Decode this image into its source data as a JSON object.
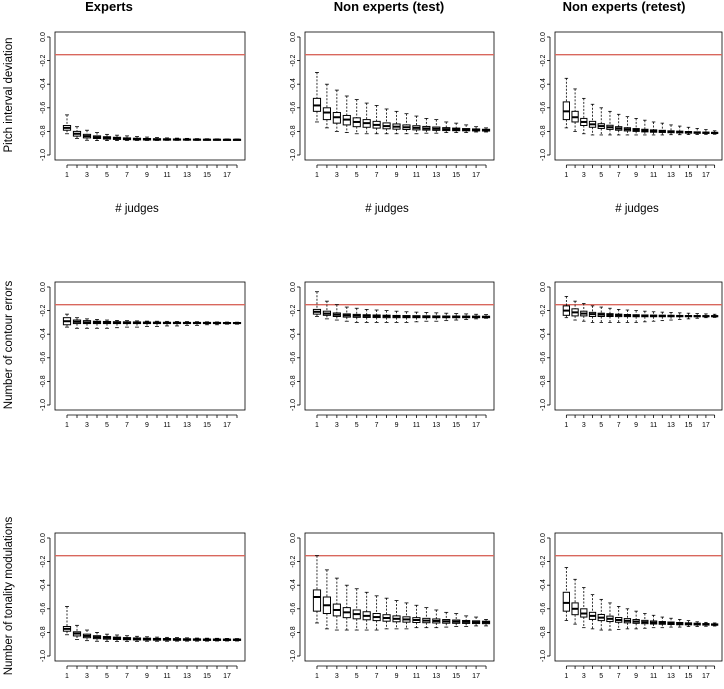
{
  "column_titles": [
    "Experts",
    "Non experts (test)",
    "Non experts (retest)"
  ],
  "row_labels": [
    "Pitch interval deviation",
    "Number of contour errors",
    "Number of tonality modulations"
  ],
  "xlabel": "# judges",
  "colors": {
    "reference_line": "#d9675d",
    "box": "#000000"
  },
  "chart_data": [
    {
      "type": "box",
      "row": 0,
      "col": 0,
      "title": "Experts",
      "ylabel": "Pitch interval deviation",
      "xlabel": "# judges",
      "ylim": [
        -1.0,
        0.0
      ],
      "yticks": [
        "0.0",
        "-0.2",
        "-0.4",
        "-0.6",
        "-0.8",
        "-1.0"
      ],
      "xticks": [
        "1",
        "3",
        "5",
        "7",
        "9",
        "11",
        "13",
        "15",
        "17"
      ],
      "reference_line": -0.15,
      "n_judges": 18,
      "medians": [
        -0.77,
        -0.82,
        -0.84,
        -0.85,
        -0.855,
        -0.86,
        -0.862,
        -0.864,
        -0.866,
        -0.868,
        -0.868,
        -0.869,
        -0.869,
        -0.87,
        -0.87,
        -0.87,
        -0.87,
        -0.87
      ],
      "q1": [
        -0.79,
        -0.84,
        -0.855,
        -0.86,
        -0.865,
        -0.868,
        -0.87,
        -0.872,
        -0.873,
        -0.874,
        -0.874,
        -0.874,
        -0.874,
        -0.874,
        -0.874,
        -0.874,
        -0.874,
        -0.874
      ],
      "q3": [
        -0.75,
        -0.8,
        -0.825,
        -0.838,
        -0.845,
        -0.85,
        -0.855,
        -0.858,
        -0.86,
        -0.862,
        -0.863,
        -0.864,
        -0.865,
        -0.866,
        -0.867,
        -0.867,
        -0.868,
        -0.868
      ],
      "whisker_low": [
        -0.82,
        -0.86,
        -0.875,
        -0.878,
        -0.878,
        -0.878,
        -0.877,
        -0.877,
        -0.877,
        -0.877,
        -0.876,
        -0.876,
        -0.876,
        -0.876,
        -0.875,
        -0.875,
        -0.875,
        -0.874
      ],
      "whisker_high": [
        -0.66,
        -0.76,
        -0.79,
        -0.81,
        -0.825,
        -0.832,
        -0.838,
        -0.844,
        -0.848,
        -0.852,
        -0.855,
        -0.857,
        -0.859,
        -0.861,
        -0.862,
        -0.863,
        -0.864,
        -0.865
      ]
    },
    {
      "type": "box",
      "row": 0,
      "col": 1,
      "title": "Non experts (test)",
      "ylabel": "Pitch interval deviation",
      "xlabel": "# judges",
      "ylim": [
        -1.0,
        0.0
      ],
      "yticks": [
        "0.0",
        "-0.2",
        "-0.4",
        "-0.6",
        "-0.8",
        "-1.0"
      ],
      "xticks": [
        "1",
        "3",
        "5",
        "7",
        "9",
        "11",
        "13",
        "15",
        "17"
      ],
      "reference_line": -0.15,
      "n_judges": 18,
      "medians": [
        -0.58,
        -0.64,
        -0.68,
        -0.7,
        -0.72,
        -0.73,
        -0.745,
        -0.755,
        -0.76,
        -0.765,
        -0.77,
        -0.775,
        -0.778,
        -0.781,
        -0.784,
        -0.786,
        -0.788,
        -0.79
      ],
      "q1": [
        -0.63,
        -0.7,
        -0.73,
        -0.745,
        -0.76,
        -0.765,
        -0.772,
        -0.778,
        -0.781,
        -0.784,
        -0.787,
        -0.789,
        -0.791,
        -0.793,
        -0.794,
        -0.795,
        -0.796,
        -0.797
      ],
      "q3": [
        -0.52,
        -0.6,
        -0.64,
        -0.665,
        -0.685,
        -0.7,
        -0.715,
        -0.728,
        -0.737,
        -0.745,
        -0.752,
        -0.758,
        -0.763,
        -0.768,
        -0.772,
        -0.776,
        -0.779,
        -0.782
      ],
      "whisker_low": [
        -0.72,
        -0.77,
        -0.8,
        -0.81,
        -0.82,
        -0.82,
        -0.82,
        -0.82,
        -0.82,
        -0.82,
        -0.82,
        -0.815,
        -0.815,
        -0.81,
        -0.81,
        -0.81,
        -0.805,
        -0.805
      ],
      "whisker_high": [
        -0.3,
        -0.4,
        -0.45,
        -0.5,
        -0.53,
        -0.56,
        -0.58,
        -0.61,
        -0.63,
        -0.65,
        -0.67,
        -0.69,
        -0.7,
        -0.72,
        -0.73,
        -0.745,
        -0.76,
        -0.77
      ]
    },
    {
      "type": "box",
      "row": 0,
      "col": 2,
      "title": "Non experts (retest)",
      "ylabel": "Pitch interval deviation",
      "xlabel": "# judges",
      "ylim": [
        -1.0,
        0.0
      ],
      "yticks": [
        "0.0",
        "-0.2",
        "-0.4",
        "-0.6",
        "-0.8",
        "-1.0"
      ],
      "xticks": [
        "1",
        "3",
        "5",
        "7",
        "9",
        "11",
        "13",
        "15",
        "17"
      ],
      "reference_line": -0.15,
      "n_judges": 18,
      "medians": [
        -0.63,
        -0.68,
        -0.72,
        -0.74,
        -0.755,
        -0.765,
        -0.775,
        -0.782,
        -0.788,
        -0.793,
        -0.797,
        -0.8,
        -0.803,
        -0.806,
        -0.808,
        -0.81,
        -0.812,
        -0.813
      ],
      "q1": [
        -0.7,
        -0.72,
        -0.75,
        -0.765,
        -0.775,
        -0.783,
        -0.79,
        -0.796,
        -0.8,
        -0.804,
        -0.807,
        -0.809,
        -0.811,
        -0.813,
        -0.815,
        -0.816,
        -0.817,
        -0.818
      ],
      "q3": [
        -0.55,
        -0.63,
        -0.69,
        -0.715,
        -0.735,
        -0.748,
        -0.76,
        -0.769,
        -0.776,
        -0.782,
        -0.787,
        -0.791,
        -0.795,
        -0.798,
        -0.801,
        -0.804,
        -0.806,
        -0.808
      ],
      "whisker_low": [
        -0.77,
        -0.8,
        -0.82,
        -0.83,
        -0.83,
        -0.83,
        -0.83,
        -0.83,
        -0.83,
        -0.83,
        -0.83,
        -0.83,
        -0.828,
        -0.828,
        -0.827,
        -0.826,
        -0.825,
        -0.824
      ],
      "whisker_high": [
        -0.35,
        -0.44,
        -0.52,
        -0.57,
        -0.6,
        -0.63,
        -0.655,
        -0.675,
        -0.69,
        -0.705,
        -0.72,
        -0.73,
        -0.745,
        -0.755,
        -0.765,
        -0.775,
        -0.785,
        -0.795
      ]
    },
    {
      "type": "box",
      "row": 1,
      "col": 0,
      "title": "Experts",
      "ylabel": "Number of contour errors",
      "xlabel": "",
      "ylim": [
        -1.0,
        0.0
      ],
      "yticks": [
        "0.0",
        "-0.2",
        "-0.4",
        "-0.6",
        "-0.8",
        "-1.0"
      ],
      "xticks": [
        "1",
        "3",
        "5",
        "7",
        "9",
        "11",
        "13",
        "15",
        "17"
      ],
      "reference_line": -0.15,
      "n_judges": 18,
      "medians": [
        -0.29,
        -0.295,
        -0.3,
        -0.3,
        -0.302,
        -0.303,
        -0.303,
        -0.304,
        -0.304,
        -0.304,
        -0.305,
        -0.305,
        -0.305,
        -0.305,
        -0.305,
        -0.305,
        -0.305,
        -0.305
      ],
      "q1": [
        -0.32,
        -0.31,
        -0.31,
        -0.31,
        -0.31,
        -0.31,
        -0.31,
        -0.31,
        -0.31,
        -0.31,
        -0.31,
        -0.31,
        -0.31,
        -0.31,
        -0.31,
        -0.31,
        -0.31,
        -0.31
      ],
      "q3": [
        -0.26,
        -0.28,
        -0.285,
        -0.29,
        -0.292,
        -0.294,
        -0.295,
        -0.296,
        -0.297,
        -0.298,
        -0.299,
        -0.299,
        -0.3,
        -0.3,
        -0.3,
        -0.3,
        -0.301,
        -0.301
      ],
      "whisker_low": [
        -0.34,
        -0.35,
        -0.35,
        -0.35,
        -0.35,
        -0.345,
        -0.34,
        -0.34,
        -0.335,
        -0.335,
        -0.33,
        -0.33,
        -0.325,
        -0.325,
        -0.32,
        -0.32,
        -0.315,
        -0.315
      ],
      "whisker_high": [
        -0.23,
        -0.26,
        -0.27,
        -0.275,
        -0.28,
        -0.283,
        -0.285,
        -0.287,
        -0.289,
        -0.29,
        -0.291,
        -0.292,
        -0.293,
        -0.294,
        -0.295,
        -0.296,
        -0.297,
        -0.298
      ]
    },
    {
      "type": "box",
      "row": 1,
      "col": 1,
      "title": "Non experts (test)",
      "ylabel": "Number of contour errors",
      "xlabel": "",
      "ylim": [
        -1.0,
        0.0
      ],
      "yticks": [
        "0.0",
        "-0.2",
        "-0.4",
        "-0.6",
        "-0.8",
        "-1.0"
      ],
      "xticks": [
        "1",
        "3",
        "5",
        "7",
        "9",
        "11",
        "13",
        "15",
        "17"
      ],
      "reference_line": -0.15,
      "n_judges": 18,
      "medians": [
        -0.21,
        -0.225,
        -0.235,
        -0.24,
        -0.243,
        -0.245,
        -0.247,
        -0.248,
        -0.249,
        -0.25,
        -0.25,
        -0.251,
        -0.251,
        -0.252,
        -0.252,
        -0.252,
        -0.253,
        -0.253
      ],
      "q1": [
        -0.23,
        -0.24,
        -0.25,
        -0.255,
        -0.257,
        -0.258,
        -0.259,
        -0.26,
        -0.26,
        -0.26,
        -0.26,
        -0.26,
        -0.26,
        -0.26,
        -0.26,
        -0.26,
        -0.26,
        -0.26
      ],
      "q3": [
        -0.19,
        -0.205,
        -0.22,
        -0.228,
        -0.232,
        -0.235,
        -0.237,
        -0.239,
        -0.241,
        -0.242,
        -0.243,
        -0.244,
        -0.245,
        -0.246,
        -0.246,
        -0.247,
        -0.247,
        -0.248
      ],
      "whisker_low": [
        -0.25,
        -0.27,
        -0.28,
        -0.29,
        -0.3,
        -0.3,
        -0.3,
        -0.3,
        -0.3,
        -0.3,
        -0.295,
        -0.29,
        -0.29,
        -0.285,
        -0.28,
        -0.275,
        -0.27,
        -0.265
      ],
      "whisker_high": [
        -0.04,
        -0.12,
        -0.15,
        -0.17,
        -0.18,
        -0.19,
        -0.195,
        -0.2,
        -0.205,
        -0.21,
        -0.213,
        -0.216,
        -0.219,
        -0.222,
        -0.225,
        -0.228,
        -0.231,
        -0.234
      ]
    },
    {
      "type": "box",
      "row": 1,
      "col": 2,
      "title": "Non experts (retest)",
      "ylabel": "Number of contour errors",
      "xlabel": "",
      "ylim": [
        -1.0,
        0.0
      ],
      "yticks": [
        "0.0",
        "-0.2",
        "-0.4",
        "-0.6",
        "-0.8",
        "-1.0"
      ],
      "xticks": [
        "1",
        "3",
        "5",
        "7",
        "9",
        "11",
        "13",
        "15",
        "17"
      ],
      "reference_line": -0.15,
      "n_judges": 18,
      "medians": [
        -0.2,
        -0.215,
        -0.225,
        -0.23,
        -0.234,
        -0.237,
        -0.239,
        -0.241,
        -0.242,
        -0.243,
        -0.244,
        -0.245,
        -0.245,
        -0.246,
        -0.246,
        -0.247,
        -0.247,
        -0.247
      ],
      "q1": [
        -0.24,
        -0.245,
        -0.245,
        -0.25,
        -0.25,
        -0.25,
        -0.251,
        -0.251,
        -0.252,
        -0.252,
        -0.252,
        -0.252,
        -0.252,
        -0.252,
        -0.252,
        -0.252,
        -0.252,
        -0.252
      ],
      "q3": [
        -0.16,
        -0.185,
        -0.205,
        -0.215,
        -0.222,
        -0.226,
        -0.23,
        -0.233,
        -0.235,
        -0.237,
        -0.238,
        -0.239,
        -0.24,
        -0.241,
        -0.242,
        -0.242,
        -0.243,
        -0.243
      ],
      "whisker_low": [
        -0.26,
        -0.28,
        -0.29,
        -0.3,
        -0.3,
        -0.3,
        -0.3,
        -0.3,
        -0.3,
        -0.295,
        -0.29,
        -0.285,
        -0.28,
        -0.275,
        -0.27,
        -0.265,
        -0.26,
        -0.258
      ],
      "whisker_high": [
        -0.08,
        -0.12,
        -0.14,
        -0.16,
        -0.17,
        -0.18,
        -0.19,
        -0.195,
        -0.2,
        -0.205,
        -0.21,
        -0.213,
        -0.216,
        -0.219,
        -0.222,
        -0.225,
        -0.228,
        -0.231
      ]
    },
    {
      "type": "box",
      "row": 2,
      "col": 0,
      "title": "Experts",
      "ylabel": "Number of tonality modulations",
      "xlabel": "",
      "ylim": [
        -1.0,
        0.0
      ],
      "yticks": [
        "0.0",
        "-0.2",
        "-0.4",
        "-0.6",
        "-0.8",
        "-1.0"
      ],
      "xticks": [
        "1",
        "3",
        "5",
        "7",
        "9",
        "11",
        "13",
        "15",
        "17"
      ],
      "reference_line": -0.15,
      "n_judges": 18,
      "medians": [
        -0.77,
        -0.81,
        -0.83,
        -0.84,
        -0.845,
        -0.85,
        -0.852,
        -0.854,
        -0.856,
        -0.857,
        -0.858,
        -0.859,
        -0.86,
        -0.86,
        -0.861,
        -0.861,
        -0.862,
        -0.862
      ],
      "q1": [
        -0.79,
        -0.83,
        -0.845,
        -0.853,
        -0.857,
        -0.86,
        -0.862,
        -0.864,
        -0.865,
        -0.866,
        -0.866,
        -0.867,
        -0.867,
        -0.867,
        -0.868,
        -0.868,
        -0.868,
        -0.868
      ],
      "q3": [
        -0.75,
        -0.795,
        -0.815,
        -0.828,
        -0.835,
        -0.84,
        -0.844,
        -0.847,
        -0.849,
        -0.851,
        -0.852,
        -0.853,
        -0.854,
        -0.855,
        -0.856,
        -0.856,
        -0.857,
        -0.857
      ],
      "whisker_low": [
        -0.82,
        -0.86,
        -0.87,
        -0.875,
        -0.876,
        -0.876,
        -0.876,
        -0.876,
        -0.875,
        -0.875,
        -0.875,
        -0.874,
        -0.874,
        -0.874,
        -0.874,
        -0.873,
        -0.873,
        -0.873
      ],
      "whisker_high": [
        -0.58,
        -0.74,
        -0.78,
        -0.8,
        -0.815,
        -0.822,
        -0.828,
        -0.833,
        -0.837,
        -0.84,
        -0.842,
        -0.844,
        -0.846,
        -0.848,
        -0.849,
        -0.85,
        -0.851,
        -0.852
      ]
    },
    {
      "type": "box",
      "row": 2,
      "col": 1,
      "title": "Non experts (test)",
      "ylabel": "Number of tonality modulations",
      "xlabel": "",
      "ylim": [
        -1.0,
        0.0
      ],
      "yticks": [
        "0.0",
        "-0.2",
        "-0.4",
        "-0.6",
        "-0.8",
        "-1.0"
      ],
      "xticks": [
        "1",
        "3",
        "5",
        "7",
        "9",
        "11",
        "13",
        "15",
        "17"
      ],
      "reference_line": -0.15,
      "n_judges": 18,
      "medians": [
        -0.5,
        -0.57,
        -0.61,
        -0.63,
        -0.645,
        -0.66,
        -0.67,
        -0.678,
        -0.685,
        -0.69,
        -0.695,
        -0.7,
        -0.703,
        -0.706,
        -0.709,
        -0.711,
        -0.713,
        -0.715
      ],
      "q1": [
        -0.62,
        -0.64,
        -0.66,
        -0.675,
        -0.685,
        -0.693,
        -0.7,
        -0.705,
        -0.71,
        -0.713,
        -0.716,
        -0.718,
        -0.72,
        -0.722,
        -0.723,
        -0.724,
        -0.725,
        -0.726
      ],
      "q3": [
        -0.44,
        -0.5,
        -0.56,
        -0.59,
        -0.61,
        -0.625,
        -0.64,
        -0.65,
        -0.66,
        -0.668,
        -0.675,
        -0.681,
        -0.686,
        -0.691,
        -0.695,
        -0.699,
        -0.702,
        -0.705
      ],
      "whisker_low": [
        -0.72,
        -0.77,
        -0.78,
        -0.78,
        -0.78,
        -0.78,
        -0.78,
        -0.77,
        -0.77,
        -0.77,
        -0.76,
        -0.76,
        -0.76,
        -0.755,
        -0.75,
        -0.75,
        -0.745,
        -0.745
      ],
      "whisker_high": [
        -0.15,
        -0.27,
        -0.34,
        -0.4,
        -0.43,
        -0.46,
        -0.49,
        -0.51,
        -0.53,
        -0.55,
        -0.57,
        -0.59,
        -0.61,
        -0.63,
        -0.64,
        -0.66,
        -0.67,
        -0.69
      ]
    },
    {
      "type": "box",
      "row": 2,
      "col": 2,
      "title": "Non experts (retest)",
      "ylabel": "Number of tonality modulations",
      "xlabel": "",
      "ylim": [
        -1.0,
        0.0
      ],
      "yticks": [
        "0.0",
        "-0.2",
        "-0.4",
        "-0.6",
        "-0.8",
        "-1.0"
      ],
      "xticks": [
        "1",
        "3",
        "5",
        "7",
        "9",
        "11",
        "13",
        "15",
        "17"
      ],
      "reference_line": -0.15,
      "n_judges": 18,
      "medians": [
        -0.55,
        -0.6,
        -0.64,
        -0.66,
        -0.675,
        -0.685,
        -0.695,
        -0.702,
        -0.708,
        -0.713,
        -0.717,
        -0.72,
        -0.723,
        -0.726,
        -0.728,
        -0.73,
        -0.732,
        -0.734
      ],
      "q1": [
        -0.62,
        -0.65,
        -0.67,
        -0.69,
        -0.7,
        -0.708,
        -0.714,
        -0.719,
        -0.723,
        -0.726,
        -0.729,
        -0.731,
        -0.733,
        -0.735,
        -0.736,
        -0.737,
        -0.738,
        -0.739
      ],
      "q3": [
        -0.46,
        -0.55,
        -0.6,
        -0.63,
        -0.648,
        -0.662,
        -0.674,
        -0.683,
        -0.691,
        -0.698,
        -0.703,
        -0.708,
        -0.712,
        -0.716,
        -0.719,
        -0.722,
        -0.725,
        -0.728
      ],
      "whisker_low": [
        -0.7,
        -0.73,
        -0.76,
        -0.77,
        -0.78,
        -0.78,
        -0.775,
        -0.77,
        -0.77,
        -0.765,
        -0.76,
        -0.76,
        -0.755,
        -0.755,
        -0.75,
        -0.75,
        -0.748,
        -0.746
      ],
      "whisker_high": [
        -0.25,
        -0.35,
        -0.42,
        -0.48,
        -0.52,
        -0.55,
        -0.58,
        -0.6,
        -0.62,
        -0.64,
        -0.655,
        -0.67,
        -0.68,
        -0.69,
        -0.7,
        -0.71,
        -0.715,
        -0.72
      ]
    }
  ]
}
